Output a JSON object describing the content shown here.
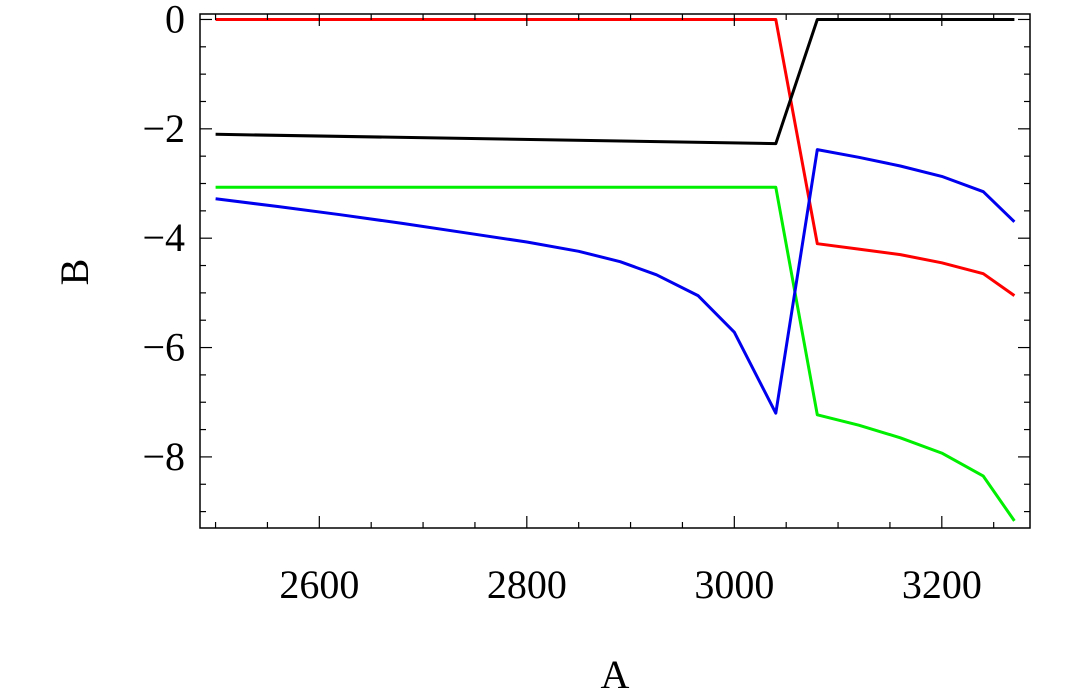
{
  "chart_data": {
    "type": "line",
    "title": "",
    "xlabel": "A",
    "ylabel": "B",
    "xlim": [
      2485,
      3285
    ],
    "ylim": [
      -9.3,
      0.1
    ],
    "xticks": [
      2600,
      2800,
      3000,
      3200
    ],
    "xtick_labels": [
      "2600",
      "2800",
      "3000",
      "3200"
    ],
    "yticks": [
      0,
      -2,
      -4,
      -6,
      -8
    ],
    "ytick_labels": [
      "0",
      "−2",
      "−4",
      "−6",
      "−8"
    ],
    "grid": false,
    "series": [
      {
        "color": "#ff0000",
        "x": [
          2500,
          3040,
          3080,
          3120,
          3160,
          3200,
          3240,
          3270
        ],
        "y": [
          0.0,
          0.0,
          -4.1,
          -4.2,
          -4.3,
          -4.45,
          -4.65,
          -5.05
        ]
      },
      {
        "color": "#000000",
        "x": [
          2500,
          3040,
          3080,
          3120,
          3160,
          3200,
          3240,
          3270
        ],
        "y": [
          -2.1,
          -2.27,
          0.0,
          0.0,
          0.0,
          0.0,
          0.0,
          0.0
        ]
      },
      {
        "color": "#00ee00",
        "x": [
          2500,
          3040,
          3080,
          3120,
          3160,
          3200,
          3240,
          3270
        ],
        "y": [
          -3.07,
          -3.07,
          -7.23,
          -7.42,
          -7.65,
          -7.93,
          -8.35,
          -9.17
        ]
      },
      {
        "color": "#0000ee",
        "x": [
          2500,
          2560,
          2620,
          2680,
          2740,
          2800,
          2850,
          2890,
          2925,
          2965,
          3000,
          3040,
          3080,
          3120,
          3160,
          3200,
          3240,
          3270
        ],
        "y": [
          -3.28,
          -3.42,
          -3.57,
          -3.73,
          -3.9,
          -4.07,
          -4.24,
          -4.43,
          -4.67,
          -5.05,
          -5.72,
          -7.2,
          -2.38,
          -2.52,
          -2.68,
          -2.87,
          -3.15,
          -3.7
        ]
      }
    ]
  }
}
